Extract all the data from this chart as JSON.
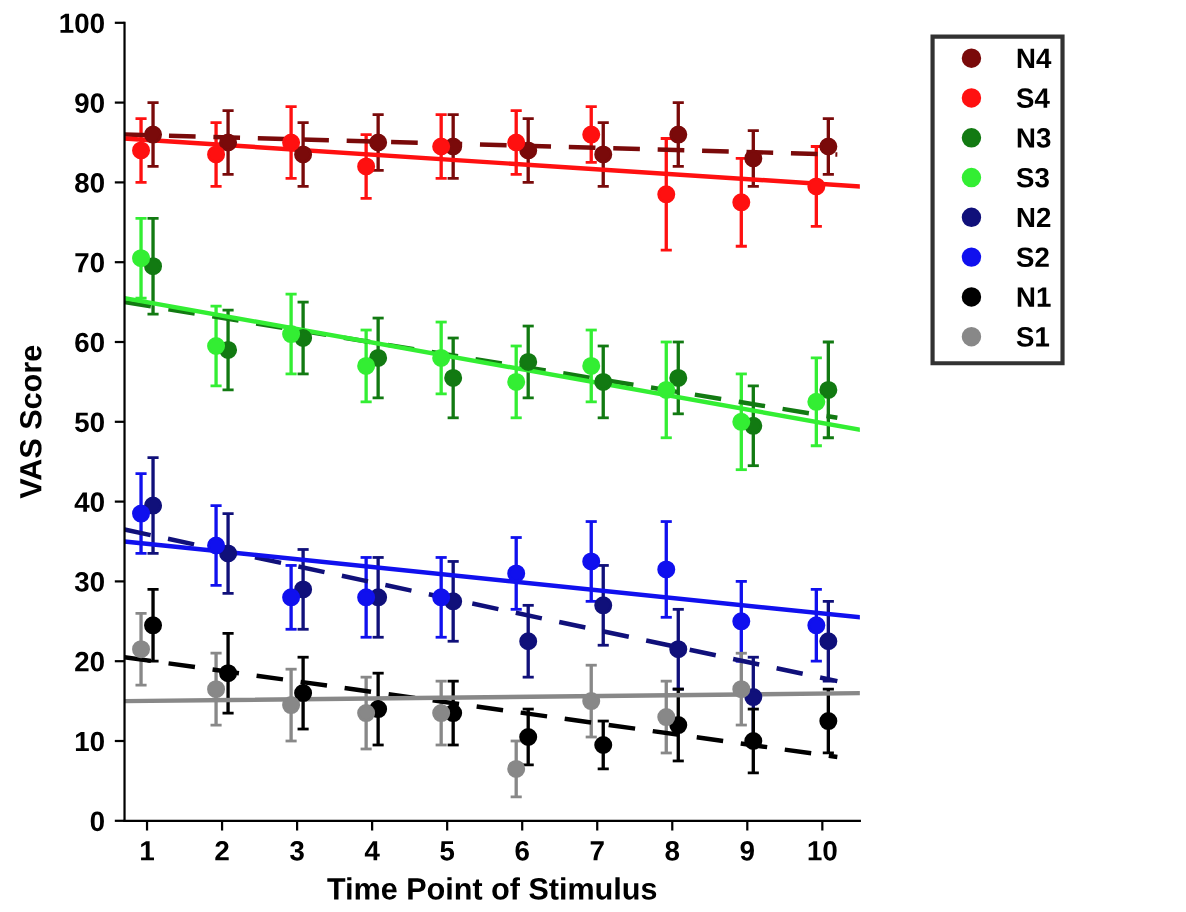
{
  "chart_data": {
    "type": "scatter",
    "xlabel": "Time Point of Stimulus",
    "ylabel": "VAS Score",
    "xlim": [
      0.7,
      10.5
    ],
    "ylim": [
      0,
      100
    ],
    "xticks": [
      1,
      2,
      3,
      4,
      5,
      6,
      7,
      8,
      9,
      10
    ],
    "yticks": [
      0,
      10,
      20,
      30,
      40,
      50,
      60,
      70,
      80,
      90,
      100
    ],
    "grid": false,
    "legend": "top right",
    "marker": "circle",
    "series": [
      {
        "name": "N4",
        "color": "#7a0a0a",
        "x": [
          1.08,
          2.08,
          3.08,
          4.08,
          5.08,
          6.08,
          7.08,
          8.08,
          9.08,
          10.08
        ],
        "values": [
          86,
          85,
          83.5,
          85,
          84.5,
          84,
          83.5,
          86,
          83,
          84.5
        ],
        "errors": [
          4,
          4,
          4,
          3.5,
          4,
          4,
          4,
          4,
          3.5,
          3.5
        ]
      },
      {
        "name": "S4",
        "color": "#ff1010",
        "x": [
          0.92,
          1.92,
          2.92,
          3.92,
          4.92,
          5.92,
          6.92,
          7.92,
          8.92,
          9.92
        ],
        "values": [
          84,
          83.5,
          85,
          82,
          84.5,
          85,
          86,
          78.5,
          77.5,
          79.5
        ],
        "errors": [
          4,
          4,
          4.5,
          4,
          4,
          4,
          3.5,
          7,
          5.5,
          5
        ]
      },
      {
        "name": "N3",
        "color": "#127a12",
        "x": [
          1.08,
          2.08,
          3.08,
          4.08,
          5.08,
          6.08,
          7.08,
          8.08,
          9.08,
          10.08
        ],
        "values": [
          69.5,
          59,
          60.5,
          58,
          55.5,
          57.5,
          55,
          55.5,
          49.5,
          54
        ],
        "errors": [
          6,
          5,
          4.5,
          5,
          5,
          4.5,
          4.5,
          4.5,
          5,
          6
        ]
      },
      {
        "name": "S3",
        "color": "#33ee33",
        "x": [
          0.92,
          1.92,
          2.92,
          3.92,
          4.92,
          5.92,
          6.92,
          7.92,
          8.92,
          9.92
        ],
        "values": [
          70.5,
          59.5,
          61,
          57,
          58,
          55,
          57,
          54,
          50,
          52.5
        ],
        "errors": [
          5,
          5,
          5,
          4.5,
          4.5,
          4.5,
          4.5,
          6,
          6,
          5.5
        ]
      },
      {
        "name": "N2",
        "color": "#10107a",
        "x": [
          1.08,
          2.08,
          3.08,
          4.08,
          5.08,
          6.08,
          7.08,
          8.08,
          9.08,
          10.08
        ],
        "values": [
          39.5,
          33.5,
          29,
          28,
          27.5,
          22.5,
          27,
          21.5,
          15.5,
          22.5
        ],
        "errors": [
          6,
          5,
          5,
          5,
          5,
          4.5,
          5,
          5,
          5,
          5
        ]
      },
      {
        "name": "S2",
        "color": "#1010ee",
        "x": [
          0.92,
          1.92,
          2.92,
          3.92,
          4.92,
          5.92,
          6.92,
          7.92,
          8.92,
          9.92
        ],
        "values": [
          38.5,
          34.5,
          28,
          28,
          28,
          31,
          32.5,
          31.5,
          25,
          24.5
        ],
        "errors": [
          5,
          5,
          4,
          5,
          5,
          4.5,
          5,
          6,
          5,
          4.5
        ]
      },
      {
        "name": "N1",
        "color": "#000000",
        "x": [
          1.08,
          2.08,
          3.08,
          4.08,
          5.08,
          6.08,
          7.08,
          8.08,
          9.08,
          10.08
        ],
        "values": [
          24.5,
          18.5,
          16,
          14,
          13.5,
          10.5,
          9.5,
          12,
          10,
          12.5
        ],
        "errors": [
          4.5,
          5,
          4.5,
          4.5,
          4,
          3.5,
          3,
          4.5,
          4,
          4
        ]
      },
      {
        "name": "S1",
        "color": "#888888",
        "x": [
          0.92,
          1.92,
          2.92,
          3.92,
          4.92,
          5.92,
          6.92,
          7.92,
          8.92
        ],
        "values": [
          21.5,
          16.5,
          14.5,
          13.5,
          13.5,
          6.5,
          15,
          13,
          16.5
        ],
        "errors": [
          4.5,
          4.5,
          4.5,
          4.5,
          4,
          3.5,
          4.5,
          4.5,
          4.5
        ]
      },
      {
        "type": "line",
        "marker": "none",
        "color": "#7a0a0a",
        "line_style": "dashed",
        "x": [
          0.7,
          10.2
        ],
        "values": [
          86,
          83.5
        ]
      },
      {
        "type": "line",
        "marker": "none",
        "color": "#ff1010",
        "line_style": "solid",
        "x": [
          0.7,
          10.5
        ],
        "values": [
          85.5,
          79.5
        ]
      },
      {
        "type": "line",
        "marker": "none",
        "color": "#127a12",
        "line_style": "dashed",
        "x": [
          0.7,
          10.2
        ],
        "values": [
          65,
          50.5
        ]
      },
      {
        "type": "line",
        "marker": "none",
        "color": "#33ee33",
        "line_style": "solid",
        "x": [
          0.7,
          10.5
        ],
        "values": [
          65.5,
          49
        ]
      },
      {
        "type": "line",
        "marker": "none",
        "color": "#10107a",
        "line_style": "dashed",
        "x": [
          0.7,
          10.2
        ],
        "values": [
          36.5,
          17.5
        ]
      },
      {
        "type": "line",
        "marker": "none",
        "color": "#1010ee",
        "line_style": "solid",
        "x": [
          0.7,
          10.5
        ],
        "values": [
          35,
          25.5
        ]
      },
      {
        "type": "line",
        "marker": "none",
        "color": "#000000",
        "line_style": "dashed",
        "x": [
          0.7,
          10.2
        ],
        "values": [
          20.5,
          8
        ]
      },
      {
        "type": "line",
        "marker": "none",
        "color": "#888888",
        "line_style": "solid",
        "x": [
          0.7,
          10.5
        ],
        "values": [
          15,
          16
        ]
      }
    ]
  }
}
